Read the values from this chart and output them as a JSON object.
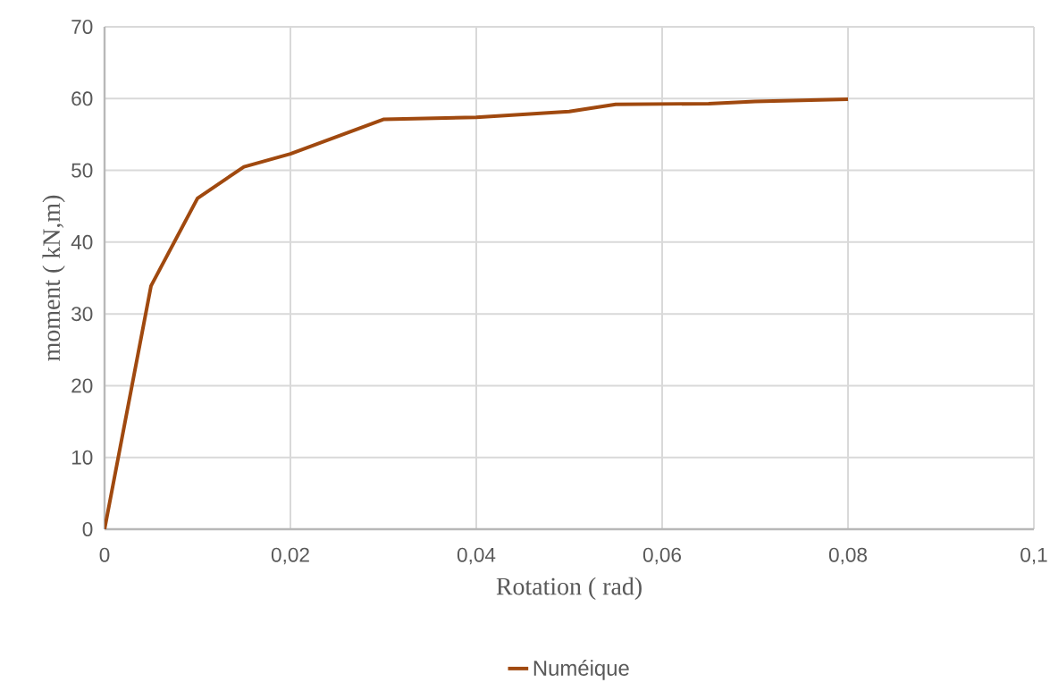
{
  "chart_data": {
    "type": "line",
    "xlabel": "Rotation ( rad)",
    "ylabel": "moment ( kN,m)",
    "x": [
      0,
      0.005,
      0.01,
      0.015,
      0.02,
      0.03,
      0.04,
      0.05,
      0.055,
      0.065,
      0.07,
      0.08
    ],
    "series": [
      {
        "name": "Numéique",
        "color": "#a0490f",
        "values": [
          0,
          33.9,
          46.1,
          50.5,
          52.3,
          57.1,
          57.4,
          58.2,
          59.2,
          59.3,
          59.6,
          59.9
        ]
      }
    ],
    "xlim": [
      0,
      0.1
    ],
    "xticks": [
      0,
      {
        "value": 0.02,
        "label": "0,02"
      },
      {
        "value": 0.04,
        "label": "0,04"
      },
      {
        "value": 0.06,
        "label": "0,06"
      },
      {
        "value": 0.08,
        "label": "0,08"
      },
      {
        "value": 0.1,
        "label": "0,1"
      }
    ],
    "ylim": [
      0,
      70
    ],
    "yticks": [
      0,
      10,
      20,
      30,
      40,
      50,
      60,
      70
    ],
    "grid": true,
    "legend": "bottom",
    "marker": "none",
    "line_style": "solid"
  }
}
